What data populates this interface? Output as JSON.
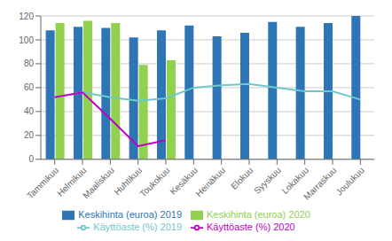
{
  "chart_data": {
    "type": "bar",
    "categories": [
      "Tammikuu",
      "Helmikuu",
      "Maaliskuu",
      "Huhtikuu",
      "Toukokuu",
      "Kesäkuu",
      "Heinäkuu",
      "Elokuu",
      "Syyskuu",
      "Lokakuu",
      "Marraskuu",
      "Joulukuu"
    ],
    "series": [
      {
        "name": "Keskihinta (euroa) 2019",
        "type": "bar",
        "color": "#2E75B6",
        "values": [
          108,
          111,
          110,
          102,
          108,
          112,
          103,
          106,
          115,
          111,
          114,
          120
        ]
      },
      {
        "name": "Keskihinta (euroa) 2020",
        "type": "bar",
        "color": "#92D050",
        "values": [
          114,
          116,
          114,
          79,
          83,
          null,
          null,
          null,
          null,
          null,
          null,
          null
        ]
      },
      {
        "name": "Käyttöaste (%) 2019",
        "type": "line",
        "color": "#70C8C8",
        "values": [
          52,
          56,
          52,
          49,
          51,
          60,
          62,
          63,
          60,
          57,
          57,
          50
        ]
      },
      {
        "name": "Käyttöaste (%) 2020",
        "type": "line",
        "color": "#C000C0",
        "values": [
          52,
          56,
          34,
          11,
          16,
          null,
          null,
          null,
          null,
          null,
          null,
          null
        ]
      }
    ],
    "ylim": [
      0,
      120
    ],
    "yticks": [
      0,
      20,
      40,
      60,
      80,
      100,
      120
    ],
    "grid": true,
    "legend": "bottom"
  }
}
